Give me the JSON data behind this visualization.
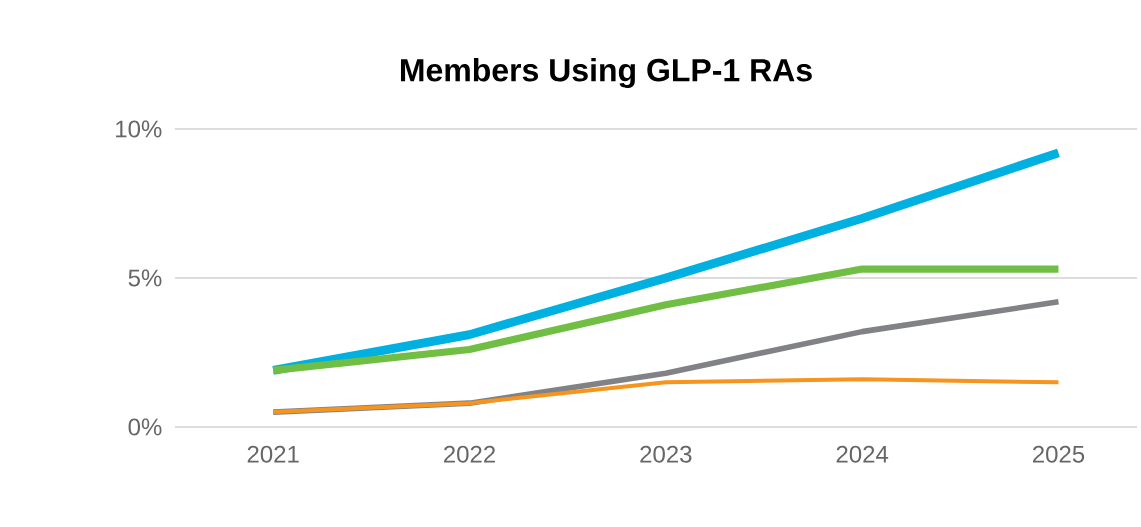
{
  "chart_data": {
    "type": "line",
    "title": "Members Using GLP-1 RAs",
    "categories": [
      "2021",
      "2022",
      "2023",
      "2024",
      "2025"
    ],
    "series": [
      {
        "color": "#00b0e0",
        "values": [
          1.9,
          3.1,
          5.0,
          7.0,
          9.2
        ]
      },
      {
        "color": "#70bf44",
        "values": [
          1.9,
          2.6,
          4.1,
          5.3,
          5.3
        ]
      },
      {
        "color": "#808285",
        "values": [
          0.5,
          0.8,
          1.8,
          3.2,
          4.2
        ]
      },
      {
        "color": "#f7941d",
        "values": [
          0.5,
          0.8,
          1.5,
          1.6,
          1.5
        ]
      }
    ],
    "ylim": [
      0,
      10
    ],
    "yticks": [
      {
        "value": 0,
        "label": "0%"
      },
      {
        "value": 5,
        "label": "5%"
      },
      {
        "value": 10,
        "label": "10%"
      }
    ],
    "grid": "y",
    "marker": "none",
    "line_style": "solid"
  }
}
